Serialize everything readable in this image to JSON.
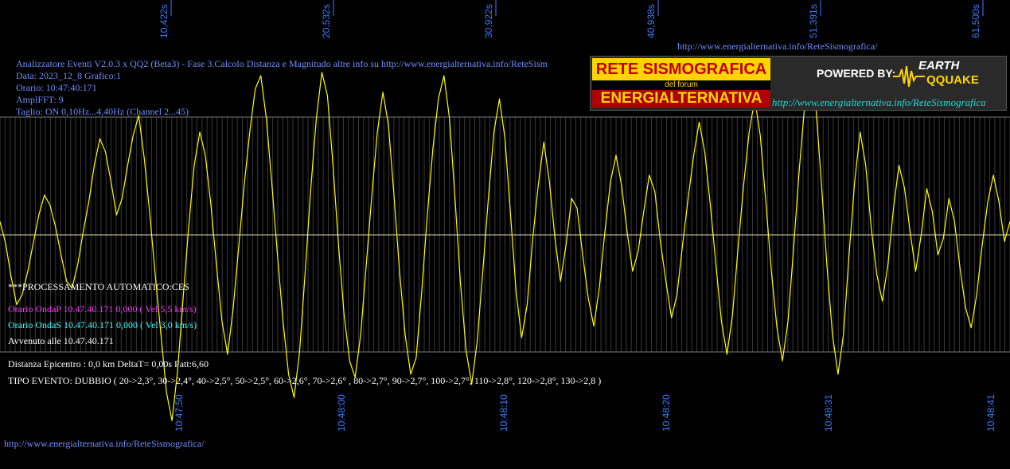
{
  "header": {
    "line1": "Analizzatore Eventi V2.0.3 x QQ2 (Beta3) - Fase 3.Calcolo Distanza e Magnitudo altre info su http://www.energialternativa.info/ReteSism",
    "line2": "Data: 2023_12_8 Grafico:1",
    "line3": "Orario: 10:47:40:171",
    "line4": "AmplFFT: 9",
    "line5": "Taglio: ON 0,10Hz...4,40Hz      (Channel 2...45)"
  },
  "top_url": "http://www.energialternativa.info/ReteSismografica/",
  "bottom_url": "http://www.energialternativa.info/ReteSismografica/",
  "logo": {
    "line1": "RETE SISMOGRAFICA",
    "line2": "del forum",
    "line3": "ENERGIALTERNATIVA",
    "powered": "POWERED BY:",
    "brand1": "EARTH",
    "brand2": "QQUAKE",
    "url": "http://www.energialternativa.info/ReteSismografica"
  },
  "processing": {
    "title": "***PROCESSAMENTO AUTOMATICO:CES",
    "p_wave": "Orario OndaP 10.47.40.171  0,000 ( Vel 5,5 km/s)",
    "s_wave": "Orario OndaS 10.47.40.171  0,000 ( Vel 3,0 km/s)",
    "occurred": "Avvenuto alle 10.47.40.171",
    "distance": "Distanza Epicentro : 0,0 km DeltaT= 0,00s  Fatt:6,60",
    "event_type": "TIPO EVENTO: DUBBIO ( 20->2,3°, 30->2,4°, 40->2,5°, 50->2,5°, 60->2,6°, 70->2,6° , 80->2,7°, 90->2,7°, 100->2,7°, 110->2,8°, 120->2,8°, 130->2,8 )"
  },
  "colors": {
    "trace": "#ffff00",
    "grid": "#7a7a7a",
    "tick_labels": "#3b7cff",
    "info_text": "#6f8fff"
  },
  "chart_data": {
    "type": "line",
    "top_ticks": [
      "10,422s",
      "20,532s",
      "30,922s",
      "40,938s",
      "51,391s",
      "61,500s"
    ],
    "bottom_ticks": [
      "10:47:50",
      "10:48:00",
      "10:48:10",
      "10:48:20",
      "10:48:31",
      "10:48:41"
    ],
    "series": [
      {
        "values": [
          0.08,
          -0.05,
          -0.25,
          -0.42,
          -0.36,
          -0.22,
          -0.05,
          0.12,
          0.24,
          0.18,
          0.05,
          -0.12,
          -0.28,
          -0.32,
          -0.18,
          0.02,
          0.2,
          0.42,
          0.58,
          0.5,
          0.32,
          0.12,
          0.22,
          0.42,
          0.6,
          0.72,
          0.46,
          0.12,
          -0.25,
          -0.6,
          -0.95,
          -1.12,
          -0.82,
          -0.38,
          0.05,
          0.42,
          0.62,
          0.48,
          0.18,
          -0.18,
          -0.52,
          -0.72,
          -0.45,
          -0.08,
          0.3,
          0.62,
          0.88,
          0.96,
          0.7,
          0.3,
          -0.12,
          -0.52,
          -0.84,
          -0.98,
          -0.7,
          -0.22,
          0.28,
          0.7,
          0.98,
          0.84,
          0.42,
          -0.06,
          -0.48,
          -0.76,
          -0.86,
          -0.6,
          -0.18,
          0.24,
          0.62,
          0.86,
          0.66,
          0.24,
          -0.22,
          -0.6,
          -0.84,
          -0.74,
          -0.34,
          0.12,
          0.52,
          0.82,
          0.96,
          0.7,
          0.22,
          -0.3,
          -0.7,
          -0.9,
          -0.64,
          -0.22,
          0.22,
          0.62,
          0.82,
          0.58,
          0.12,
          -0.34,
          -0.62,
          -0.42,
          -0.02,
          0.3,
          0.56,
          0.32,
          -0.02,
          -0.28,
          -0.06,
          0.22,
          0.16,
          -0.12,
          -0.38,
          -0.55,
          -0.32,
          0.02,
          0.32,
          0.48,
          0.3,
          0.02,
          -0.22,
          -0.1,
          0.14,
          0.36,
          0.26,
          -0.04,
          -0.28,
          -0.5,
          -0.36,
          -0.06,
          0.22,
          0.48,
          0.68,
          0.5,
          0.18,
          -0.18,
          -0.52,
          -0.72,
          -0.48,
          -0.08,
          0.3,
          0.62,
          0.82,
          0.6,
          0.2,
          -0.22,
          -0.56,
          -0.76,
          -0.52,
          -0.08,
          0.38,
          0.78,
          1.02,
          0.78,
          0.32,
          -0.18,
          -0.6,
          -0.84,
          -0.6,
          -0.12,
          0.32,
          0.62,
          0.42,
          0.04,
          -0.24,
          -0.4,
          -0.18,
          0.16,
          0.42,
          0.28,
          0.02,
          -0.22,
          0.0,
          0.28,
          0.14,
          -0.12,
          -0.02,
          0.22,
          0.08,
          -0.2,
          -0.44,
          -0.56,
          -0.36,
          -0.06,
          0.2,
          0.36,
          0.2,
          -0.04,
          0.08
        ],
        "color": "#ffff00"
      }
    ],
    "ylim": [
      -1.2,
      1.2
    ],
    "grid": true,
    "x_minor_divisions": 200
  }
}
